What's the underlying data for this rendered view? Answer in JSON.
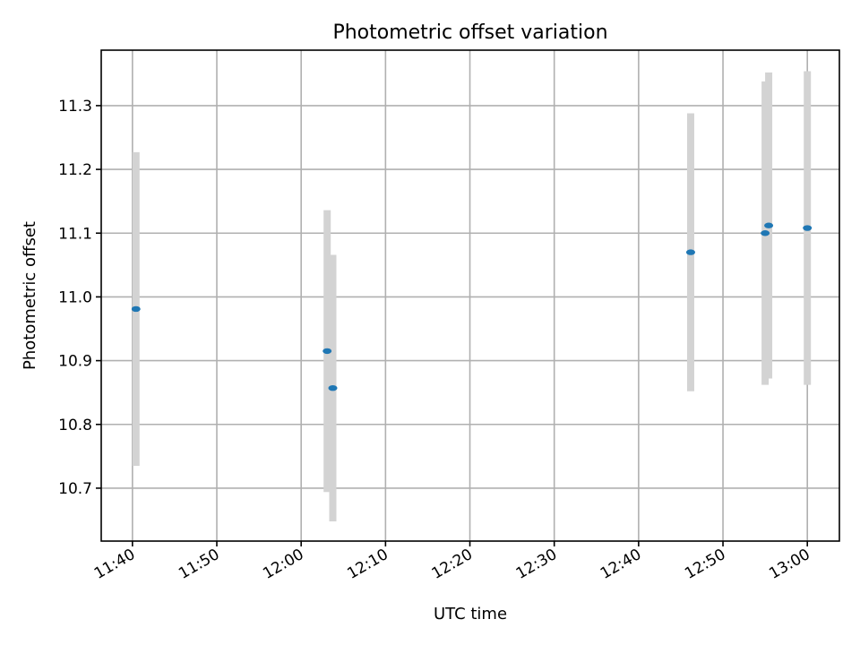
{
  "chart_data": {
    "type": "scatter",
    "title": "Photometric offset variation",
    "xlabel": "UTC time",
    "ylabel": "Photometric offset",
    "xlim_minutes": [
      696.3,
      783.8
    ],
    "ylim": [
      10.617,
      11.387
    ],
    "x_ticks": [
      {
        "label": "11:40",
        "minutes": 700
      },
      {
        "label": "11:50",
        "minutes": 710
      },
      {
        "label": "12:00",
        "minutes": 720
      },
      {
        "label": "12:10",
        "minutes": 730
      },
      {
        "label": "12:20",
        "minutes": 740
      },
      {
        "label": "12:30",
        "minutes": 750
      },
      {
        "label": "12:40",
        "minutes": 760
      },
      {
        "label": "12:50",
        "minutes": 770
      },
      {
        "label": "13:00",
        "minutes": 780
      }
    ],
    "y_ticks": [
      10.7,
      10.8,
      10.9,
      11.0,
      11.1,
      11.2,
      11.3
    ],
    "grid": true,
    "marker_color": "#1f77b4",
    "errorbar_color": "#d3d3d3",
    "points": [
      {
        "time": "11:40:25",
        "minutes": 700.42,
        "y": 10.981,
        "err": 0.246
      },
      {
        "time": "12:03:05",
        "minutes": 723.08,
        "y": 10.915,
        "err": 0.221
      },
      {
        "time": "12:03:45",
        "minutes": 723.75,
        "y": 10.857,
        "err": 0.209
      },
      {
        "time": "12:46:10",
        "minutes": 766.17,
        "y": 11.07,
        "err": 0.218
      },
      {
        "time": "12:55:00",
        "minutes": 775.0,
        "y": 11.1,
        "err": 0.238
      },
      {
        "time": "12:55:25",
        "minutes": 775.42,
        "y": 11.112,
        "err": 0.24
      },
      {
        "time": "13:00:00",
        "minutes": 780.0,
        "y": 11.108,
        "err": 0.246
      }
    ]
  }
}
